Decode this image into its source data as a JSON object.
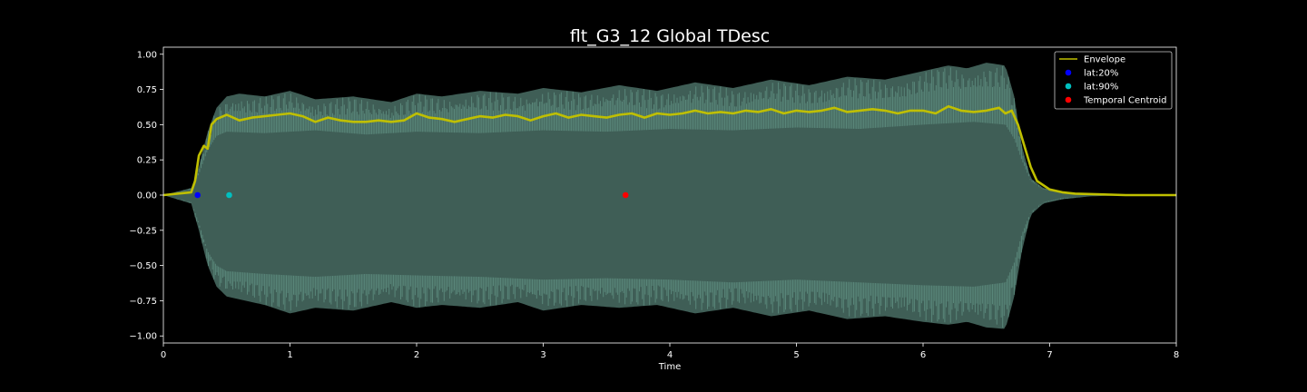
{
  "chart_data": {
    "type": "line",
    "title": "flt_G3_12 Global TDesc",
    "xlabel": "Time",
    "ylabel": "",
    "xlim": [
      0,
      8
    ],
    "ylim": [
      -1.05,
      1.05
    ],
    "xticks": [
      0,
      1,
      2,
      3,
      4,
      5,
      6,
      7,
      8
    ],
    "yticks": [
      -1.0,
      -0.75,
      -0.5,
      -0.25,
      0.0,
      0.25,
      0.5,
      0.75,
      1.0
    ],
    "xtick_labels": [
      "0",
      "1",
      "2",
      "3",
      "4",
      "5",
      "6",
      "7",
      "8"
    ],
    "ytick_labels": [
      "−1.00",
      "−0.75",
      "−0.50",
      "−0.25",
      "0.00",
      "0.25",
      "0.50",
      "0.75",
      "1.00"
    ],
    "grid": false,
    "legend_position": "top-right",
    "waveform": {
      "color": "#3f5e56",
      "edge_color": "#6fa898",
      "upper_peak": {
        "x": [
          0,
          0.22,
          0.28,
          0.35,
          0.42,
          0.5,
          0.6,
          0.8,
          1.0,
          1.2,
          1.5,
          1.8,
          2.0,
          2.2,
          2.5,
          2.8,
          3.0,
          3.3,
          3.6,
          3.9,
          4.2,
          4.5,
          4.8,
          5.1,
          5.4,
          5.7,
          6.0,
          6.2,
          6.35,
          6.5,
          6.65,
          6.72,
          6.78,
          6.85,
          6.95,
          7.1,
          7.3,
          7.6,
          8.0
        ],
        "y": [
          0.0,
          0.05,
          0.2,
          0.45,
          0.62,
          0.7,
          0.72,
          0.7,
          0.74,
          0.68,
          0.7,
          0.66,
          0.72,
          0.7,
          0.74,
          0.72,
          0.76,
          0.73,
          0.78,
          0.74,
          0.8,
          0.76,
          0.82,
          0.78,
          0.84,
          0.82,
          0.88,
          0.92,
          0.9,
          0.94,
          0.92,
          0.7,
          0.35,
          0.12,
          0.05,
          0.02,
          0.01,
          0.0,
          0.0
        ]
      },
      "upper_inner": {
        "x": [
          0,
          0.22,
          0.28,
          0.35,
          0.42,
          0.5,
          0.8,
          1.2,
          1.6,
          2.0,
          2.5,
          3.0,
          3.5,
          4.0,
          4.5,
          5.0,
          5.5,
          6.0,
          6.4,
          6.65,
          6.72,
          6.78,
          6.85,
          6.95,
          7.1,
          7.3,
          7.6,
          8.0
        ],
        "y": [
          0.0,
          0.04,
          0.15,
          0.32,
          0.42,
          0.45,
          0.44,
          0.46,
          0.43,
          0.45,
          0.44,
          0.46,
          0.45,
          0.47,
          0.46,
          0.48,
          0.47,
          0.5,
          0.52,
          0.5,
          0.4,
          0.25,
          0.1,
          0.04,
          0.02,
          0.01,
          0.0,
          0.0
        ]
      },
      "lower_peak": {
        "x": [
          0,
          0.22,
          0.28,
          0.35,
          0.42,
          0.5,
          0.6,
          0.8,
          1.0,
          1.2,
          1.5,
          1.8,
          2.0,
          2.2,
          2.5,
          2.8,
          3.0,
          3.3,
          3.6,
          3.9,
          4.2,
          4.5,
          4.8,
          5.1,
          5.4,
          5.7,
          6.0,
          6.2,
          6.35,
          6.5,
          6.65,
          6.72,
          6.78,
          6.85,
          6.95,
          7.1,
          7.3,
          7.6,
          8.0
        ],
        "y": [
          0.0,
          -0.06,
          -0.25,
          -0.5,
          -0.65,
          -0.72,
          -0.74,
          -0.78,
          -0.84,
          -0.8,
          -0.82,
          -0.76,
          -0.8,
          -0.78,
          -0.8,
          -0.76,
          -0.82,
          -0.78,
          -0.8,
          -0.78,
          -0.84,
          -0.8,
          -0.86,
          -0.82,
          -0.88,
          -0.86,
          -0.9,
          -0.92,
          -0.9,
          -0.94,
          -0.95,
          -0.72,
          -0.4,
          -0.14,
          -0.06,
          -0.03,
          -0.01,
          0.0,
          0.0
        ]
      },
      "lower_inner": {
        "x": [
          0,
          0.22,
          0.28,
          0.35,
          0.42,
          0.5,
          0.8,
          1.2,
          1.6,
          2.0,
          2.5,
          3.0,
          3.5,
          4.0,
          4.5,
          5.0,
          5.5,
          6.0,
          6.4,
          6.65,
          6.72,
          6.78,
          6.85,
          6.95,
          7.1,
          7.3,
          7.6,
          8.0
        ],
        "y": [
          0.0,
          -0.05,
          -0.2,
          -0.4,
          -0.5,
          -0.54,
          -0.56,
          -0.58,
          -0.56,
          -0.57,
          -0.58,
          -0.6,
          -0.59,
          -0.6,
          -0.62,
          -0.6,
          -0.62,
          -0.64,
          -0.65,
          -0.62,
          -0.48,
          -0.28,
          -0.12,
          -0.05,
          -0.02,
          -0.01,
          0.0,
          0.0
        ]
      }
    },
    "series": [
      {
        "name": "Envelope",
        "color": "#bfbf00",
        "x": [
          0,
          0.22,
          0.25,
          0.28,
          0.32,
          0.35,
          0.38,
          0.42,
          0.5,
          0.6,
          0.7,
          0.8,
          0.9,
          1.0,
          1.1,
          1.2,
          1.3,
          1.4,
          1.5,
          1.6,
          1.7,
          1.8,
          1.9,
          2.0,
          2.1,
          2.2,
          2.3,
          2.4,
          2.5,
          2.6,
          2.7,
          2.8,
          2.9,
          3.0,
          3.1,
          3.2,
          3.3,
          3.4,
          3.5,
          3.6,
          3.7,
          3.8,
          3.9,
          4.0,
          4.1,
          4.2,
          4.3,
          4.4,
          4.5,
          4.6,
          4.7,
          4.8,
          4.9,
          5.0,
          5.1,
          5.2,
          5.3,
          5.4,
          5.5,
          5.6,
          5.7,
          5.8,
          5.9,
          6.0,
          6.1,
          6.2,
          6.3,
          6.4,
          6.5,
          6.6,
          6.65,
          6.7,
          6.75,
          6.8,
          6.85,
          6.9,
          7.0,
          7.1,
          7.2,
          7.4,
          7.6,
          8.0
        ],
        "y": [
          0.0,
          0.02,
          0.1,
          0.28,
          0.35,
          0.33,
          0.5,
          0.54,
          0.57,
          0.53,
          0.55,
          0.56,
          0.57,
          0.58,
          0.56,
          0.52,
          0.55,
          0.53,
          0.52,
          0.52,
          0.53,
          0.52,
          0.53,
          0.58,
          0.55,
          0.54,
          0.52,
          0.54,
          0.56,
          0.55,
          0.57,
          0.56,
          0.53,
          0.56,
          0.58,
          0.55,
          0.57,
          0.56,
          0.55,
          0.57,
          0.58,
          0.55,
          0.58,
          0.57,
          0.58,
          0.6,
          0.58,
          0.59,
          0.58,
          0.6,
          0.59,
          0.61,
          0.58,
          0.6,
          0.59,
          0.6,
          0.62,
          0.59,
          0.6,
          0.61,
          0.6,
          0.58,
          0.6,
          0.6,
          0.58,
          0.63,
          0.6,
          0.59,
          0.6,
          0.62,
          0.58,
          0.6,
          0.5,
          0.35,
          0.2,
          0.1,
          0.04,
          0.02,
          0.01,
          0.005,
          0.0,
          0.0
        ]
      }
    ],
    "points": [
      {
        "name": "lat:20%",
        "color": "#0000ff",
        "x": 0.27,
        "y": 0.0
      },
      {
        "name": "lat:90%",
        "color": "#00bfbf",
        "x": 0.52,
        "y": 0.0
      },
      {
        "name": "Temporal Centroid",
        "color": "#ff0000",
        "x": 3.65,
        "y": 0.0
      }
    ]
  }
}
